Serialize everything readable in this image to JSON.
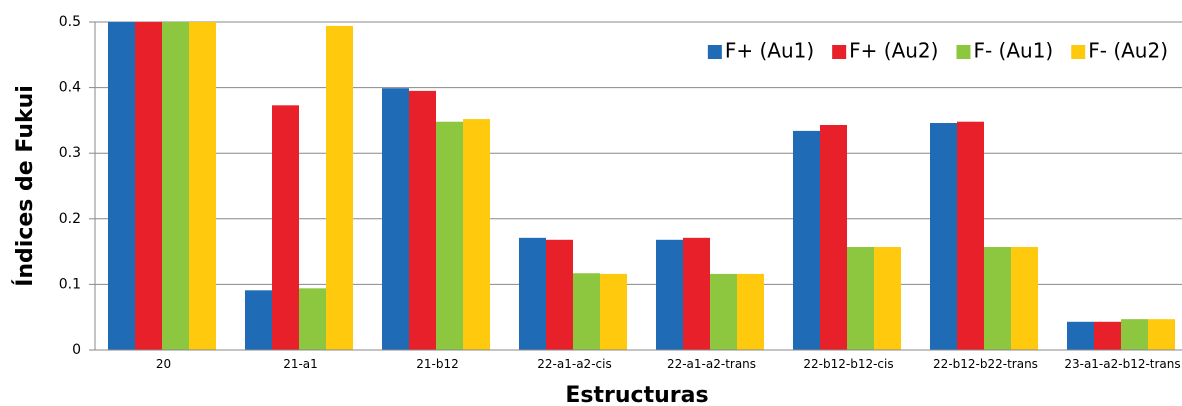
{
  "chart_data": {
    "type": "bar",
    "y_label": "Índices de Fukui",
    "x_label": "Estructuras",
    "categories": [
      "20",
      "21-a1",
      "21-b12",
      "22-a1-a2-cis",
      "22-a1-a2-trans",
      "22-b12-b12-cis",
      "22-b12-b22-trans",
      "23-a1-a2-b12-trans"
    ],
    "series": [
      {
        "name": "F+ (Au1)",
        "color": "#1f6bb5",
        "values": [
          0.5,
          0.091,
          0.399,
          0.171,
          0.168,
          0.334,
          0.346,
          0.043
        ]
      },
      {
        "name": "F+ (Au2)",
        "color": "#e8202a",
        "values": [
          0.5,
          0.373,
          0.395,
          0.168,
          0.171,
          0.343,
          0.348,
          0.043
        ]
      },
      {
        "name": "F- (Au1)",
        "color": "#8dc63f",
        "values": [
          0.5,
          0.094,
          0.348,
          0.117,
          0.116,
          0.157,
          0.157,
          0.047
        ]
      },
      {
        "name": "F- (Au2)",
        "color": "#ffc90e",
        "values": [
          0.5,
          0.494,
          0.352,
          0.116,
          0.116,
          0.157,
          0.157,
          0.047
        ]
      }
    ],
    "ylim": [
      0,
      0.5
    ],
    "yticks": [
      0,
      0.1,
      0.2,
      0.3,
      0.4,
      0.5
    ],
    "grid": true,
    "legend": "top-right"
  }
}
